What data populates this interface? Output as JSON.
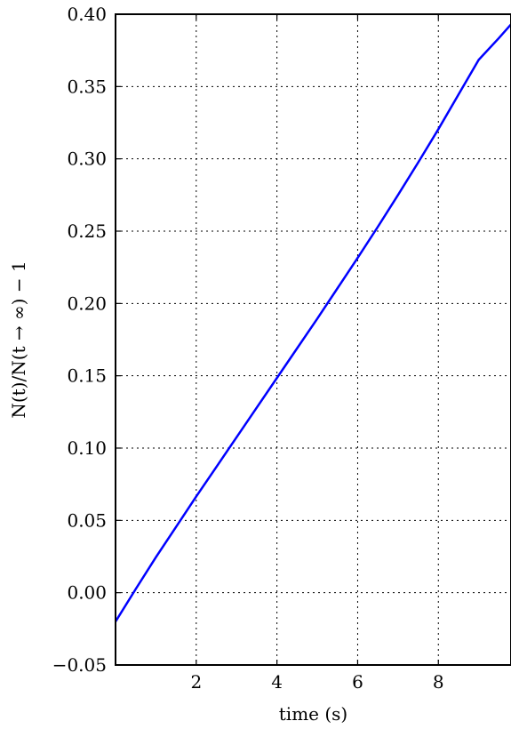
{
  "chart_data": {
    "type": "line",
    "xlabel": "time (s)",
    "ylabel": "N(t)/N(t → ∞) − 1",
    "xlim": [
      0,
      9.8
    ],
    "ylim": [
      -0.05,
      0.4
    ],
    "grid": true,
    "x_ticks": [
      {
        "value": 2,
        "label": "2"
      },
      {
        "value": 4,
        "label": "4"
      },
      {
        "value": 6,
        "label": "6"
      },
      {
        "value": 8,
        "label": "8"
      }
    ],
    "y_ticks": [
      {
        "value": -0.05,
        "label": "−0.05"
      },
      {
        "value": 0.0,
        "label": "0.00"
      },
      {
        "value": 0.05,
        "label": "0.05"
      },
      {
        "value": 0.1,
        "label": "0.10"
      },
      {
        "value": 0.15,
        "label": "0.15"
      },
      {
        "value": 0.2,
        "label": "0.20"
      },
      {
        "value": 0.25,
        "label": "0.25"
      },
      {
        "value": 0.3,
        "label": "0.30"
      },
      {
        "value": 0.35,
        "label": "0.35"
      },
      {
        "value": 0.4,
        "label": "0.40"
      }
    ],
    "series": [
      {
        "color": "#0000ff",
        "x": [
          0.0,
          0.5,
          1.0,
          1.5,
          2.0,
          2.5,
          3.0,
          3.5,
          4.0,
          4.5,
          5.0,
          5.5,
          6.0,
          6.5,
          7.0,
          7.5,
          8.0,
          8.5,
          9.0,
          9.5,
          9.8
        ],
        "y": [
          -0.02,
          0.0025,
          0.0245,
          0.0455,
          0.0665,
          0.087,
          0.1075,
          0.128,
          0.1485,
          0.169,
          0.1895,
          0.2105,
          0.2315,
          0.253,
          0.275,
          0.2975,
          0.3205,
          0.3445,
          0.3685,
          0.3835,
          0.393
        ]
      }
    ]
  }
}
